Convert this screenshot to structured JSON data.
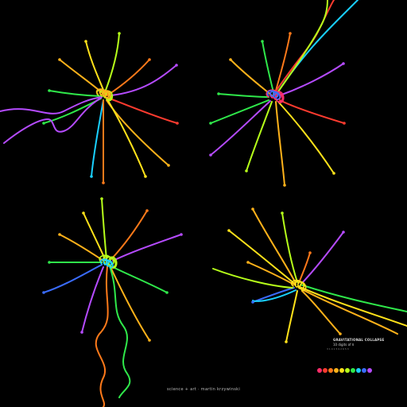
{
  "legend": {
    "title": "GRAVITATIONAL COLLAPSE",
    "subtitle": "10 digits of π",
    "tiny": "3 1 4 1 5 9 2 6 5 3"
  },
  "palette": [
    "#ff2d6a",
    "#ff3b2f",
    "#ff7a1a",
    "#ffb21a",
    "#ffe21a",
    "#b6ff1a",
    "#2fe84a",
    "#1ad0ff",
    "#3a6cff",
    "#b54bff"
  ],
  "credit": "science + art · martin krzywinski"
}
